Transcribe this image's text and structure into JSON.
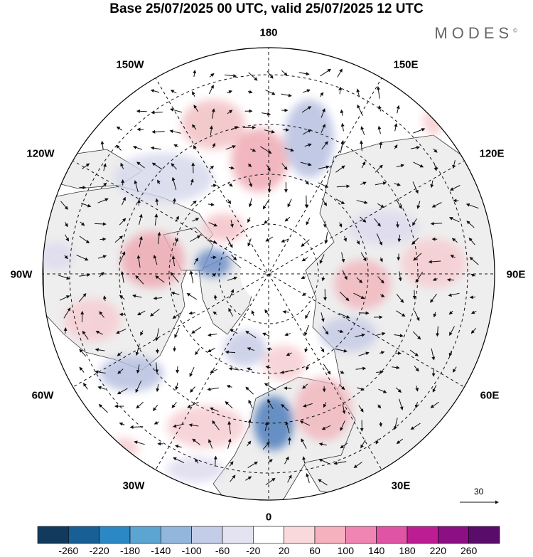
{
  "title": "Base 25/07/2025 00 UTC, valid 25/07/2025 12 UTC",
  "brand": "MODES",
  "brand_mark": "©",
  "longitude_labels": {
    "top": "180",
    "bottom": "0",
    "left": "90W",
    "right": "90E",
    "upper_left": "150W",
    "upper_right": "150E",
    "mid_upper_left": "120W",
    "mid_upper_right": "120E",
    "mid_lower_left": "60W",
    "mid_lower_right": "60E",
    "lower_left": "30W",
    "lower_right": "30E"
  },
  "reference_vector": "30",
  "colorbar": {
    "colors": [
      "#123a5c",
      "#175f95",
      "#2c88c4",
      "#5ca4d2",
      "#93b7dc",
      "#c4cde8",
      "#e4e3f2",
      "#ffffff",
      "#f9d9dc",
      "#f5b1be",
      "#f085b3",
      "#e054a6",
      "#bd1d93",
      "#8c0f84",
      "#5a0c6a"
    ],
    "labels": [
      "-260",
      "-220",
      "-180",
      "-140",
      "-100",
      "-60",
      "-20",
      "20",
      "60",
      "100",
      "140",
      "180",
      "220",
      "260"
    ]
  },
  "anomaly_legend": {
    "positive": "#f2c1c4",
    "negative": "#c7cce6"
  },
  "land_color": "#eeeeee"
}
